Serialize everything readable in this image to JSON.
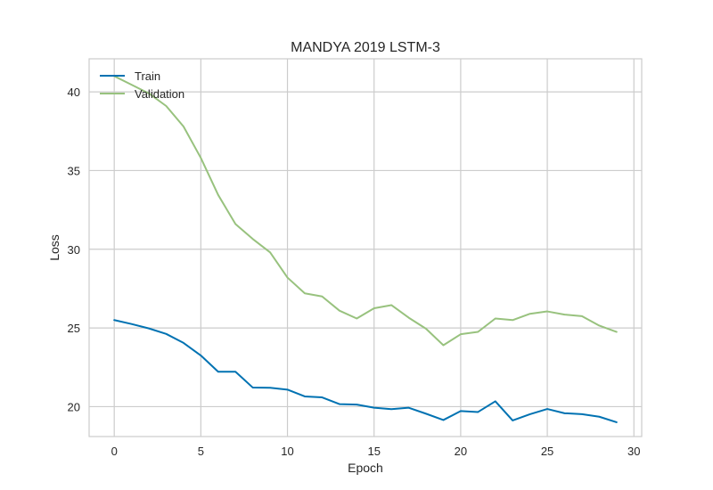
{
  "chart_data": {
    "type": "line",
    "title": "MANDYA 2019 LSTM-3",
    "xlabel": "Epoch",
    "ylabel": "Loss",
    "xlim": [
      -1.45,
      30.45
    ],
    "ylim": [
      18.1,
      42.1
    ],
    "xticks": [
      0,
      5,
      10,
      15,
      20,
      25,
      30
    ],
    "yticks": [
      20,
      25,
      30,
      35,
      40
    ],
    "grid": true,
    "legend_position": "top-left",
    "x": [
      0,
      1,
      2,
      3,
      4,
      5,
      6,
      7,
      8,
      9,
      10,
      11,
      12,
      13,
      14,
      15,
      16,
      17,
      18,
      19,
      20,
      21,
      22,
      23,
      24,
      25,
      26,
      27,
      28,
      29
    ],
    "series": [
      {
        "name": "Train",
        "color": "#0072B2",
        "values": [
          25.5,
          25.25,
          24.97,
          24.62,
          24.05,
          23.25,
          22.22,
          22.22,
          21.21,
          21.2,
          21.08,
          20.65,
          20.59,
          20.16,
          20.13,
          19.93,
          19.84,
          19.93,
          19.55,
          19.15,
          19.72,
          19.66,
          20.34,
          19.12,
          19.52,
          19.85,
          19.58,
          19.52,
          19.36,
          19.01
        ]
      },
      {
        "name": "Validation",
        "color": "#98C27E",
        "values": [
          41.0,
          40.45,
          39.9,
          39.1,
          37.8,
          35.8,
          33.45,
          31.6,
          30.65,
          29.8,
          28.2,
          27.2,
          27.0,
          26.1,
          25.6,
          26.25,
          26.45,
          25.65,
          24.95,
          23.9,
          24.6,
          24.75,
          25.6,
          25.5,
          25.9,
          26.05,
          25.85,
          25.75,
          25.15,
          24.75
        ]
      }
    ]
  }
}
